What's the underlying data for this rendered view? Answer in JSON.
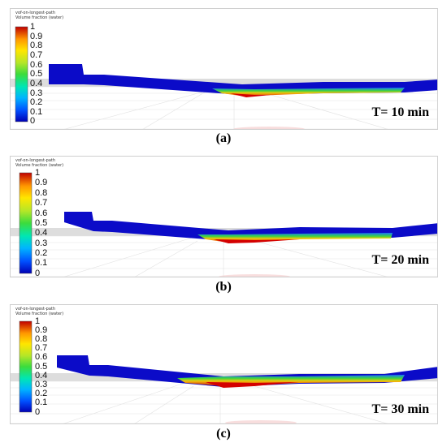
{
  "colorbar_title_lines": [
    "vof-on-longest-path",
    "Volume fraction (water)"
  ],
  "colorbar_ticks": [
    "1",
    "0.9",
    "0.8",
    "0.7",
    "0.6",
    "0.5",
    "0.4",
    "0.3",
    "0.2",
    "0.1",
    "0"
  ],
  "colormap_colors": [
    "#0000b4",
    "#0050ff",
    "#00b4ff",
    "#00e6b4",
    "#3cdc3c",
    "#b4e628",
    "#ffe600",
    "#ff9600",
    "#f03c00",
    "#c00000"
  ],
  "panels": [
    {
      "caption": "(a)",
      "time_label": "T= 10 min"
    },
    {
      "caption": "(b)",
      "time_label": "T= 20 min"
    },
    {
      "caption": "(c)",
      "time_label": "T= 30 min"
    }
  ]
}
